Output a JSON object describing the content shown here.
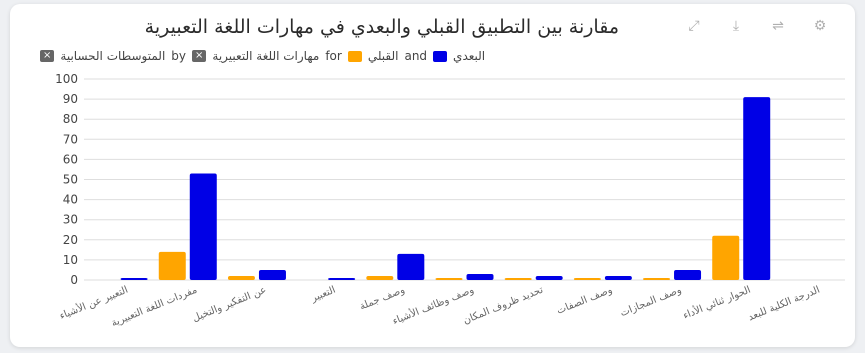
{
  "chart_data": {
    "type": "bar",
    "title": "مقارنة بين التطبيق القبلي والبعدي في مهارات اللغة التعبيرية",
    "legend_text": [
      "البعدي",
      "and",
      "القبلي",
      "for",
      "مهارات اللغة التعبيرية",
      "by",
      "المتوسطات الحسابية"
    ],
    "categories": [
      "التعبير عن الأشياء",
      "مفردات اللغة التعبيرية",
      "عن التفكير والتخيل",
      "التعبير",
      "وصف جملة",
      "وصف وظائف الأشياء",
      "تحديد ظروف المكان",
      "وصف الصفات",
      "وصف المجازات",
      "الحوار ثنائي الأداء",
      "الدرجة الكلية للبعد"
    ],
    "series": [
      {
        "name": "القبلي",
        "color": "#ffa500",
        "values": [
          0,
          14,
          2,
          0,
          2,
          1,
          1,
          1,
          1,
          22,
          0
        ]
      },
      {
        "name": "البعدي",
        "color": "#0000e6",
        "values": [
          1,
          53,
          5,
          1,
          13,
          3,
          2,
          2,
          5,
          91,
          0
        ]
      }
    ],
    "yticks": [
      0,
      10,
      20,
      30,
      40,
      50,
      60,
      70,
      80,
      90,
      100
    ],
    "ylim": [
      0,
      100
    ],
    "grid": true,
    "legend_position": "top-left"
  },
  "toolbar": {
    "icons": [
      "expand-icon",
      "download-icon",
      "filter-icon",
      "settings-icon"
    ],
    "glyphs": [
      "⤢",
      "⤓",
      "⇌",
      "⚙"
    ]
  }
}
